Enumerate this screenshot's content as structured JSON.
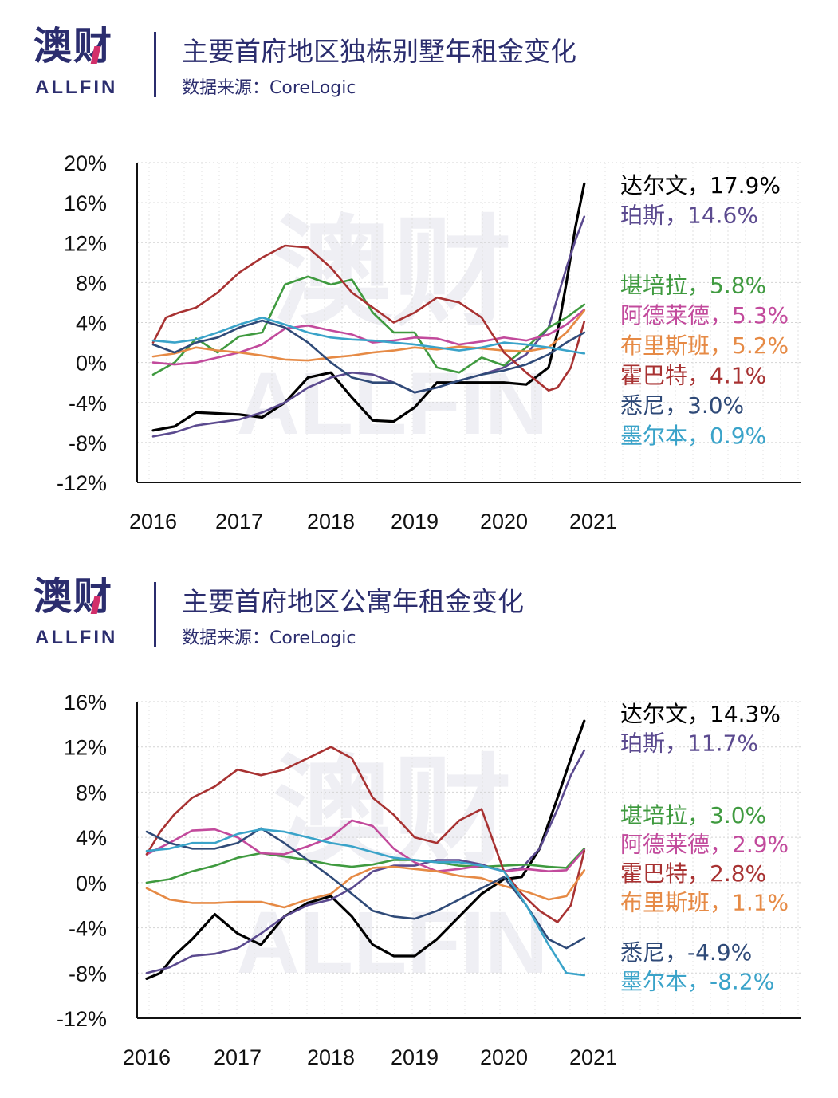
{
  "logo": {
    "cn": "澳财",
    "en": "ALLFIN"
  },
  "watermark": {
    "cn": "澳财",
    "en": "ALLFIN"
  },
  "chart_data": [
    {
      "type": "line",
      "title": "主要首府地区独栋别墅年租金变化",
      "source": "数据来源：CoreLogic",
      "xlabel": "",
      "ylabel": "",
      "x_ticks": [
        "2016",
        "2017",
        "2018",
        "2019",
        "2020",
        "2021"
      ],
      "y_ticks": [
        "20%",
        "16%",
        "12%",
        "8%",
        "4%",
        "0%",
        "-4%",
        "-8%",
        "-12%"
      ],
      "ylim": [
        -12,
        20
      ],
      "xlim": [
        2016,
        2021
      ],
      "grid": true,
      "legend_position": "right",
      "series": [
        {
          "name": "达尔文",
          "label": "达尔文，17.9%",
          "color": "#000000",
          "x": [
            2016.0,
            2016.25,
            2016.5,
            2016.75,
            2017.0,
            2017.25,
            2017.5,
            2017.75,
            2018.0,
            2018.25,
            2018.5,
            2018.75,
            2019.0,
            2019.25,
            2019.5,
            2019.75,
            2020.0,
            2020.25,
            2020.5,
            2020.6,
            2020.7,
            2020.8,
            2020.9
          ],
          "values": [
            -6.8,
            -6.4,
            -5.0,
            -5.1,
            -5.2,
            -5.5,
            -4.0,
            -1.5,
            -1.0,
            -3.5,
            -5.8,
            -5.9,
            -4.5,
            -2.0,
            -2.0,
            -2.0,
            -2.0,
            -2.2,
            -0.5,
            3.0,
            8.0,
            13.5,
            17.9
          ]
        },
        {
          "name": "珀斯",
          "label": "珀斯，14.6%",
          "color": "#5b4a8f",
          "x": [
            2016.0,
            2016.25,
            2016.5,
            2016.75,
            2017.0,
            2017.25,
            2017.5,
            2017.75,
            2018.0,
            2018.25,
            2018.5,
            2018.75,
            2019.0,
            2019.25,
            2019.5,
            2019.75,
            2020.0,
            2020.25,
            2020.5,
            2020.6,
            2020.7,
            2020.8,
            2020.9
          ],
          "values": [
            -7.4,
            -7.0,
            -6.3,
            -6.0,
            -5.7,
            -5.0,
            -4.0,
            -2.5,
            -1.5,
            -1.0,
            -1.2,
            -2.0,
            -3.0,
            -2.5,
            -1.8,
            -1.2,
            -0.5,
            0.8,
            3.5,
            6.5,
            9.5,
            12.2,
            14.6
          ]
        },
        {
          "name": "堪培拉",
          "label": "堪培拉，5.8%",
          "color": "#3f9a3f",
          "x": [
            2016.0,
            2016.25,
            2016.5,
            2016.75,
            2017.0,
            2017.25,
            2017.5,
            2017.75,
            2018.0,
            2018.25,
            2018.5,
            2018.75,
            2019.0,
            2019.25,
            2019.5,
            2019.75,
            2020.0,
            2020.25,
            2020.5,
            2020.7,
            2020.9
          ],
          "values": [
            -1.2,
            0.0,
            2.4,
            1.0,
            2.6,
            3.0,
            7.8,
            8.6,
            7.8,
            8.3,
            5.0,
            3.0,
            3.0,
            -0.5,
            -1.0,
            0.5,
            -0.3,
            1.5,
            3.5,
            4.5,
            5.8
          ]
        },
        {
          "name": "阿德莱德",
          "label": "阿德莱德，5.3%",
          "color": "#c24a9c",
          "x": [
            2016.0,
            2016.25,
            2016.5,
            2016.75,
            2017.0,
            2017.25,
            2017.5,
            2017.75,
            2018.0,
            2018.25,
            2018.5,
            2018.75,
            2019.0,
            2019.25,
            2019.5,
            2019.75,
            2020.0,
            2020.25,
            2020.5,
            2020.7,
            2020.9
          ],
          "values": [
            0.0,
            -0.2,
            0.0,
            0.5,
            1.0,
            1.8,
            3.4,
            3.7,
            3.2,
            2.8,
            2.0,
            2.2,
            2.5,
            2.4,
            1.8,
            2.1,
            2.5,
            2.2,
            2.8,
            3.8,
            5.3
          ]
        },
        {
          "name": "布里斯班",
          "label": "布里斯班，5.2%",
          "color": "#e68a45",
          "x": [
            2016.0,
            2016.25,
            2016.5,
            2016.75,
            2017.0,
            2017.25,
            2017.5,
            2017.75,
            2018.0,
            2018.25,
            2018.5,
            2018.75,
            2019.0,
            2019.25,
            2019.5,
            2019.75,
            2020.0,
            2020.25,
            2020.5,
            2020.7,
            2020.9
          ],
          "values": [
            0.6,
            0.9,
            1.5,
            1.2,
            1.0,
            0.7,
            0.3,
            0.2,
            0.5,
            0.7,
            1.0,
            1.2,
            1.5,
            1.3,
            1.6,
            1.4,
            1.2,
            1.1,
            1.5,
            3.0,
            5.2
          ]
        },
        {
          "name": "霍巴特",
          "label": "霍巴特，4.1%",
          "color": "#a83232",
          "x": [
            2016.0,
            2016.15,
            2016.3,
            2016.5,
            2016.75,
            2017.0,
            2017.25,
            2017.5,
            2017.75,
            2018.0,
            2018.25,
            2018.5,
            2018.75,
            2019.0,
            2019.25,
            2019.5,
            2019.75,
            2020.0,
            2020.25,
            2020.5,
            2020.6,
            2020.75,
            2020.9
          ],
          "values": [
            2.0,
            4.5,
            5.0,
            5.5,
            7.0,
            9.0,
            10.5,
            11.7,
            11.5,
            9.5,
            7.0,
            5.5,
            4.0,
            5.0,
            6.5,
            6.0,
            4.5,
            1.0,
            -1.0,
            -2.8,
            -2.5,
            -0.5,
            4.1
          ]
        },
        {
          "name": "悉尼",
          "label": "悉尼，3.0%",
          "color": "#2f4a78",
          "x": [
            2016.0,
            2016.25,
            2016.5,
            2016.75,
            2017.0,
            2017.25,
            2017.5,
            2017.75,
            2018.0,
            2018.25,
            2018.5,
            2018.75,
            2019.0,
            2019.25,
            2019.5,
            2019.75,
            2020.0,
            2020.25,
            2020.5,
            2020.7,
            2020.9
          ],
          "values": [
            1.8,
            1.0,
            2.0,
            2.5,
            3.5,
            4.2,
            3.5,
            2.0,
            0.0,
            -1.5,
            -2.0,
            -2.0,
            -3.0,
            -2.5,
            -1.8,
            -1.2,
            -0.8,
            -0.2,
            0.8,
            2.0,
            3.0
          ]
        },
        {
          "name": "墨尔本",
          "label": "墨尔本，0.9%",
          "color": "#3aa3c9",
          "x": [
            2016.0,
            2016.25,
            2016.5,
            2016.75,
            2017.0,
            2017.25,
            2017.5,
            2017.75,
            2018.0,
            2018.25,
            2018.5,
            2018.75,
            2019.0,
            2019.25,
            2019.5,
            2019.75,
            2020.0,
            2020.25,
            2020.5,
            2020.7,
            2020.9
          ],
          "values": [
            2.2,
            2.0,
            2.3,
            3.0,
            3.8,
            4.5,
            3.8,
            3.0,
            2.5,
            2.3,
            2.2,
            2.0,
            1.8,
            1.5,
            1.2,
            1.5,
            2.0,
            1.8,
            1.5,
            1.2,
            0.9
          ]
        }
      ]
    },
    {
      "type": "line",
      "title": "主要首府地区公寓年租金变化",
      "source": "数据来源：CoreLogic",
      "xlabel": "",
      "ylabel": "",
      "x_ticks": [
        "2016",
        "2017",
        "2018",
        "2019",
        "2020",
        "2021"
      ],
      "y_ticks": [
        "16%",
        "12%",
        "8%",
        "4%",
        "0%",
        "-4%",
        "-8%",
        "-12%"
      ],
      "ylim": [
        -12,
        16
      ],
      "xlim": [
        2016,
        2021
      ],
      "grid": true,
      "legend_position": "right",
      "series": [
        {
          "name": "达尔文",
          "label": "达尔文，14.3%",
          "color": "#000000",
          "x": [
            2016.0,
            2016.15,
            2016.3,
            2016.5,
            2016.75,
            2017.0,
            2017.25,
            2017.5,
            2017.75,
            2018.0,
            2018.25,
            2018.5,
            2018.75,
            2019.0,
            2019.25,
            2019.5,
            2019.75,
            2020.0,
            2020.2,
            2020.4,
            2020.6,
            2020.75,
            2020.9
          ],
          "values": [
            -8.5,
            -8.0,
            -6.5,
            -5.0,
            -2.8,
            -4.5,
            -5.5,
            -3.0,
            -1.8,
            -1.2,
            -3.0,
            -5.5,
            -6.5,
            -6.5,
            -5.0,
            -3.0,
            -1.0,
            0.3,
            0.5,
            3.0,
            7.5,
            11.0,
            14.3
          ]
        },
        {
          "name": "珀斯",
          "label": "珀斯，11.7%",
          "color": "#5b4a8f",
          "x": [
            2016.0,
            2016.25,
            2016.5,
            2016.75,
            2017.0,
            2017.25,
            2017.5,
            2017.75,
            2018.0,
            2018.25,
            2018.5,
            2018.75,
            2019.0,
            2019.25,
            2019.5,
            2019.75,
            2020.0,
            2020.2,
            2020.4,
            2020.6,
            2020.75,
            2020.9
          ],
          "values": [
            -8.0,
            -7.5,
            -6.5,
            -6.3,
            -5.8,
            -4.5,
            -3.0,
            -2.0,
            -1.5,
            -0.5,
            1.0,
            1.5,
            1.5,
            2.0,
            2.0,
            1.6,
            1.0,
            1.3,
            3.0,
            6.5,
            9.5,
            11.7
          ]
        },
        {
          "name": "堪培拉",
          "label": "堪培拉，3.0%",
          "color": "#3f9a3f",
          "x": [
            2016.0,
            2016.25,
            2016.5,
            2016.75,
            2017.0,
            2017.25,
            2017.5,
            2017.75,
            2018.0,
            2018.25,
            2018.5,
            2018.75,
            2019.0,
            2019.25,
            2019.5,
            2019.75,
            2020.0,
            2020.25,
            2020.5,
            2020.7,
            2020.9
          ],
          "values": [
            0.0,
            0.3,
            1.0,
            1.5,
            2.2,
            2.6,
            2.3,
            2.0,
            1.6,
            1.4,
            1.6,
            2.0,
            2.0,
            1.8,
            1.5,
            1.4,
            1.5,
            1.6,
            1.4,
            1.3,
            3.0
          ]
        },
        {
          "name": "阿德莱德",
          "label": "阿德莱德，2.9%",
          "color": "#c24a9c",
          "x": [
            2016.0,
            2016.25,
            2016.5,
            2016.75,
            2017.0,
            2017.25,
            2017.5,
            2017.75,
            2018.0,
            2018.25,
            2018.5,
            2018.75,
            2019.0,
            2019.25,
            2019.5,
            2019.75,
            2020.0,
            2020.25,
            2020.5,
            2020.7,
            2020.9
          ],
          "values": [
            2.5,
            3.5,
            4.6,
            4.7,
            4.0,
            2.6,
            2.5,
            3.2,
            4.0,
            5.5,
            5.0,
            3.0,
            1.8,
            1.0,
            1.2,
            1.5,
            1.0,
            1.2,
            1.0,
            1.1,
            2.9
          ]
        },
        {
          "name": "霍巴特",
          "label": "霍巴特，2.8%",
          "color": "#a83232",
          "x": [
            2016.0,
            2016.15,
            2016.3,
            2016.5,
            2016.75,
            2017.0,
            2017.25,
            2017.5,
            2017.75,
            2018.0,
            2018.25,
            2018.5,
            2018.75,
            2019.0,
            2019.25,
            2019.5,
            2019.75,
            2020.0,
            2020.2,
            2020.4,
            2020.6,
            2020.75,
            2020.9
          ],
          "values": [
            2.5,
            4.5,
            6.0,
            7.5,
            8.5,
            10.0,
            9.5,
            10.0,
            11.0,
            12.0,
            11.0,
            7.5,
            6.0,
            4.0,
            3.5,
            5.5,
            6.5,
            1.0,
            -1.0,
            -2.5,
            -3.5,
            -2.0,
            2.8
          ]
        },
        {
          "name": "布里斯班",
          "label": "布里斯班，1.1%",
          "color": "#e68a45",
          "x": [
            2016.0,
            2016.25,
            2016.5,
            2016.75,
            2017.0,
            2017.25,
            2017.5,
            2017.75,
            2018.0,
            2018.25,
            2018.5,
            2018.75,
            2019.0,
            2019.25,
            2019.5,
            2019.75,
            2020.0,
            2020.25,
            2020.5,
            2020.7,
            2020.9
          ],
          "values": [
            -0.5,
            -1.5,
            -1.8,
            -1.8,
            -1.7,
            -1.7,
            -2.2,
            -1.5,
            -1.0,
            0.5,
            1.3,
            1.4,
            1.2,
            1.0,
            0.6,
            0.4,
            -0.3,
            -0.8,
            -1.5,
            -1.2,
            1.1
          ]
        },
        {
          "name": "悉尼",
          "label": "悉尼，-4.9%",
          "color": "#2f4a78",
          "x": [
            2016.0,
            2016.25,
            2016.5,
            2016.75,
            2017.0,
            2017.25,
            2017.5,
            2017.75,
            2018.0,
            2018.25,
            2018.5,
            2018.75,
            2019.0,
            2019.25,
            2019.5,
            2019.75,
            2020.0,
            2020.25,
            2020.5,
            2020.7,
            2020.9
          ],
          "values": [
            4.5,
            3.5,
            3.0,
            3.0,
            3.5,
            4.8,
            3.5,
            2.0,
            0.5,
            -1.0,
            -2.5,
            -3.0,
            -3.2,
            -2.5,
            -1.5,
            -0.5,
            0.5,
            -2.0,
            -5.0,
            -5.8,
            -4.9
          ]
        },
        {
          "name": "墨尔本",
          "label": "墨尔本，-8.2%",
          "color": "#3aa3c9",
          "x": [
            2016.0,
            2016.25,
            2016.5,
            2016.75,
            2017.0,
            2017.25,
            2017.5,
            2017.75,
            2018.0,
            2018.25,
            2018.5,
            2018.75,
            2019.0,
            2019.25,
            2019.5,
            2019.75,
            2020.0,
            2020.25,
            2020.5,
            2020.7,
            2020.9
          ],
          "values": [
            2.8,
            3.0,
            3.5,
            3.5,
            4.3,
            4.7,
            4.5,
            4.0,
            3.5,
            3.2,
            2.7,
            2.2,
            2.0,
            1.8,
            1.8,
            1.5,
            1.0,
            -2.0,
            -5.5,
            -8.0,
            -8.2
          ]
        }
      ]
    }
  ]
}
